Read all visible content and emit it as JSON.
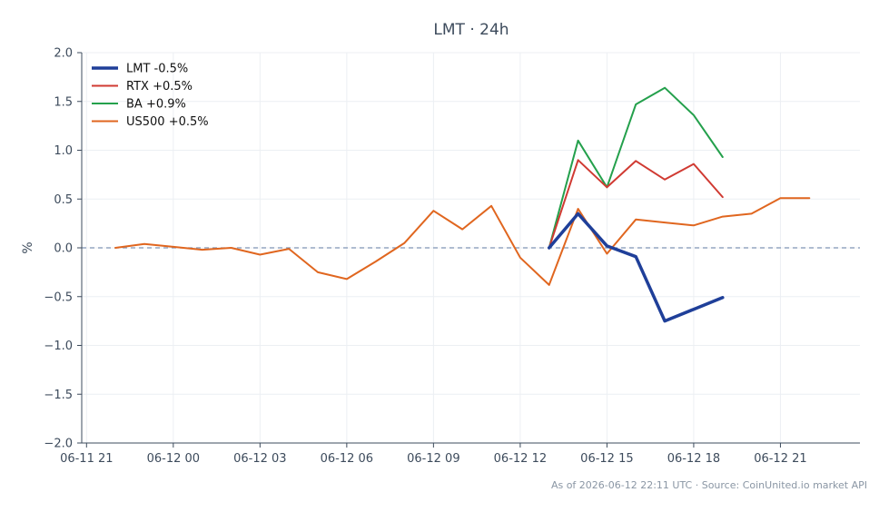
{
  "chart_data": {
    "type": "line",
    "title": "LMT · 24h",
    "ylabel": "%",
    "xlabel": "",
    "ylim": [
      -2.0,
      2.0
    ],
    "xlim": [
      "2026-06-11 20:50",
      "2026-06-12 23:45"
    ],
    "yticks": [
      -2.0,
      -1.5,
      -1.0,
      -0.5,
      0.0,
      0.5,
      1.0,
      1.5,
      2.0
    ],
    "ytick_labels": [
      "−2.0",
      "−1.5",
      "−1.0",
      "−0.5",
      "0.0",
      "0.5",
      "1.0",
      "1.5",
      "2.0"
    ],
    "xticks": [
      "2026-06-11 21:00",
      "2026-06-12 00:00",
      "2026-06-12 03:00",
      "2026-06-12 06:00",
      "2026-06-12 09:00",
      "2026-06-12 12:00",
      "2026-06-12 15:00",
      "2026-06-12 18:00",
      "2026-06-12 21:00"
    ],
    "xtick_labels": [
      "06-11 21",
      "06-12 00",
      "06-12 03",
      "06-12 06",
      "06-12 09",
      "06-12 12",
      "06-12 15",
      "06-12 18",
      "06-12 21"
    ],
    "grid": true,
    "legend_position": "top-left",
    "reference_line": {
      "y": 0.0,
      "style": "dashed",
      "color": "#7f95b5"
    },
    "footer": "As of 2026-06-12 22:11 UTC · Source: CoinUnited.io market API",
    "series": [
      {
        "name": "LMT -0.5%",
        "color": "#1f3f99",
        "width": 3.5,
        "x": [
          "2026-06-12 13:00",
          "2026-06-12 14:00",
          "2026-06-12 15:00",
          "2026-06-12 16:00",
          "2026-06-12 17:00",
          "2026-06-12 18:00",
          "2026-06-12 19:00"
        ],
        "y": [
          0.0,
          0.35,
          0.02,
          -0.09,
          -0.75,
          -0.63,
          -0.51
        ]
      },
      {
        "name": "RTX +0.5%",
        "color": "#d03a32",
        "width": 2,
        "x": [
          "2026-06-12 13:00",
          "2026-06-12 14:00",
          "2026-06-12 15:00",
          "2026-06-12 16:00",
          "2026-06-12 17:00",
          "2026-06-12 18:00",
          "2026-06-12 19:00"
        ],
        "y": [
          0.0,
          0.9,
          0.62,
          0.89,
          0.7,
          0.86,
          0.52
        ]
      },
      {
        "name": "BA +0.9%",
        "color": "#24a04c",
        "width": 2,
        "x": [
          "2026-06-12 13:00",
          "2026-06-12 14:00",
          "2026-06-12 15:00",
          "2026-06-12 16:00",
          "2026-06-12 17:00",
          "2026-06-12 18:00",
          "2026-06-12 19:00"
        ],
        "y": [
          0.0,
          1.1,
          0.62,
          1.47,
          1.64,
          1.36,
          0.93
        ]
      },
      {
        "name": "US500 +0.5%",
        "color": "#e0661f",
        "width": 2,
        "x": [
          "2026-06-11 22:00",
          "2026-06-11 23:00",
          "2026-06-12 00:00",
          "2026-06-12 01:00",
          "2026-06-12 02:00",
          "2026-06-12 03:00",
          "2026-06-12 04:00",
          "2026-06-12 05:00",
          "2026-06-12 06:00",
          "2026-06-12 07:00",
          "2026-06-12 08:00",
          "2026-06-12 09:00",
          "2026-06-12 10:00",
          "2026-06-12 11:00",
          "2026-06-12 12:00",
          "2026-06-12 13:00",
          "2026-06-12 14:00",
          "2026-06-12 15:00",
          "2026-06-12 16:00",
          "2026-06-12 17:00",
          "2026-06-12 18:00",
          "2026-06-12 19:00",
          "2026-06-12 20:00",
          "2026-06-12 21:00",
          "2026-06-12 22:00"
        ],
        "y": [
          0.0,
          0.04,
          0.01,
          -0.02,
          0.0,
          -0.07,
          -0.01,
          -0.25,
          -0.32,
          -0.14,
          0.05,
          0.38,
          0.19,
          0.43,
          -0.1,
          -0.38,
          0.4,
          -0.06,
          0.29,
          0.26,
          0.23,
          0.32,
          0.35,
          0.51,
          0.51
        ]
      }
    ]
  }
}
